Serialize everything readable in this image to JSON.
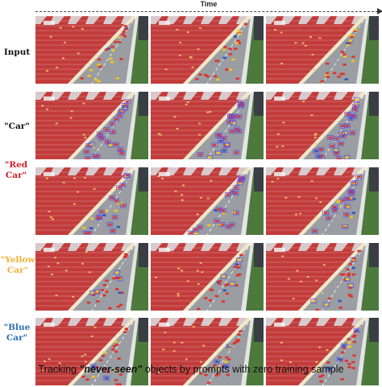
{
  "header": {
    "time_label": "Time"
  },
  "rows": [
    {
      "label": "Input",
      "color": "#111111",
      "box_color": ""
    },
    {
      "label": "\"Car\"",
      "color": "#111111",
      "box_color": "#5b4de0"
    },
    {
      "label": "\"Red Car\"",
      "color": "#d0202a",
      "box_color": "#5b4de0"
    },
    {
      "label": "\"Yellow Car\"",
      "color": "#f2b233",
      "box_color": "#5b4de0"
    },
    {
      "label": "\"Blue Car\"",
      "color": "#2a6fb5",
      "box_color": "#5b4de0"
    }
  ],
  "caption": {
    "prefix": "Tracking ",
    "emphasis": "\"never-seen\"",
    "suffix": " objects by prompts with zero training sample"
  },
  "colors": {
    "track": "#9a9da2",
    "stands_red": "#c33b3b",
    "grass": "#4d7a3c",
    "car_red": "#e0322b",
    "car_yellow": "#f2c51d",
    "car_blue": "#2f55c8"
  }
}
